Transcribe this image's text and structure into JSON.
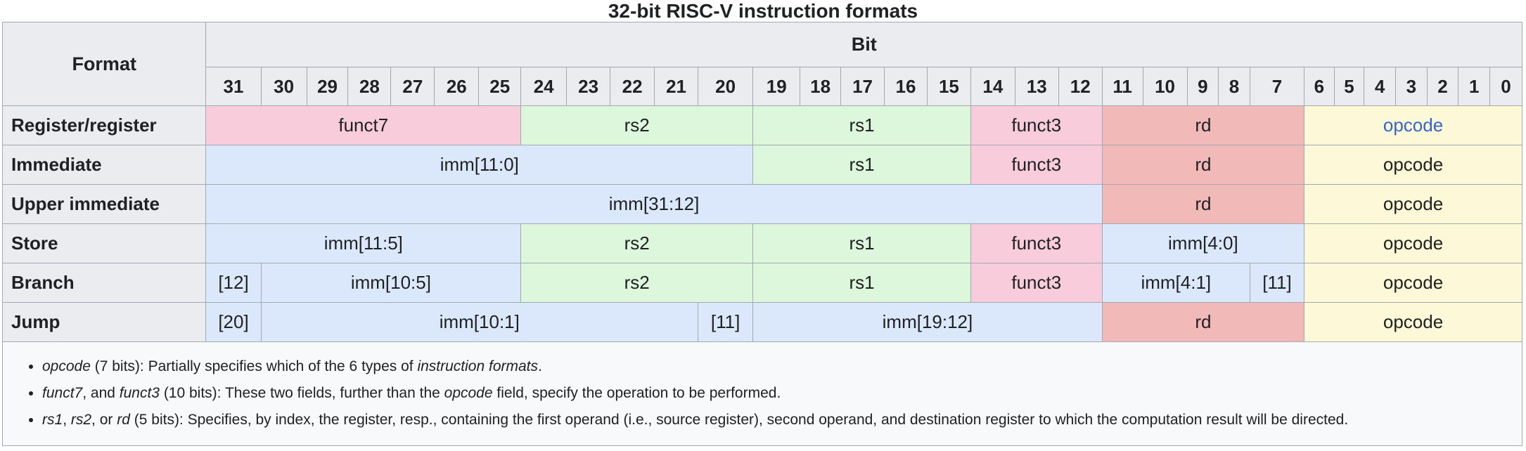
{
  "title": "32-bit RISC-V instruction formats",
  "header": {
    "format_label": "Format",
    "bit_label": "Bit",
    "bit_numbers": [
      "31",
      "30",
      "29",
      "28",
      "27",
      "26",
      "25",
      "24",
      "23",
      "22",
      "21",
      "20",
      "19",
      "18",
      "17",
      "16",
      "15",
      "14",
      "13",
      "12",
      "11",
      "10",
      "9",
      "8",
      "7",
      "6",
      "5",
      "4",
      "3",
      "2",
      "1",
      "0"
    ]
  },
  "layout": {
    "format_col_width": 285,
    "bit_col_widths": [
      77,
      64,
      58,
      60,
      61,
      62,
      59,
      64,
      61,
      62,
      61,
      77,
      66,
      57,
      61,
      60,
      61,
      62,
      61,
      61,
      57,
      62,
      44,
      44,
      76,
      42,
      42,
      44,
      44,
      44,
      44,
      45
    ]
  },
  "colors": {
    "pink": "#F8CCDB",
    "green": "#DDF7DD",
    "blue": "#DBE8FB",
    "salmon": "#F2B9B9",
    "yellow": "#FDF8D7",
    "header_bg": "#EAECF0",
    "border": "#A2A9B1",
    "notes_bg": "#F8F9FA",
    "link": "#3366CC",
    "text": "#202122"
  },
  "rows": [
    {
      "label": "Register/register",
      "fields": [
        {
          "text": "funct7",
          "span": 7,
          "color": "pink"
        },
        {
          "text": "rs2",
          "span": 5,
          "color": "green"
        },
        {
          "text": "rs1",
          "span": 5,
          "color": "green"
        },
        {
          "text": "funct3",
          "span": 3,
          "color": "pink"
        },
        {
          "text": "rd",
          "span": 5,
          "color": "salmon"
        },
        {
          "text": "opcode",
          "span": 7,
          "color": "yellow",
          "link": true
        }
      ]
    },
    {
      "label": "Immediate",
      "fields": [
        {
          "text": "imm[11:0]",
          "span": 12,
          "color": "blue"
        },
        {
          "text": "rs1",
          "span": 5,
          "color": "green"
        },
        {
          "text": "funct3",
          "span": 3,
          "color": "pink"
        },
        {
          "text": "rd",
          "span": 5,
          "color": "salmon"
        },
        {
          "text": "opcode",
          "span": 7,
          "color": "yellow"
        }
      ]
    },
    {
      "label": "Upper immediate",
      "fields": [
        {
          "text": "imm[31:12]",
          "span": 20,
          "color": "blue"
        },
        {
          "text": "rd",
          "span": 5,
          "color": "salmon"
        },
        {
          "text": "opcode",
          "span": 7,
          "color": "yellow"
        }
      ]
    },
    {
      "label": "Store",
      "fields": [
        {
          "text": "imm[11:5]",
          "span": 7,
          "color": "blue"
        },
        {
          "text": "rs2",
          "span": 5,
          "color": "green"
        },
        {
          "text": "rs1",
          "span": 5,
          "color": "green"
        },
        {
          "text": "funct3",
          "span": 3,
          "color": "pink"
        },
        {
          "text": "imm[4:0]",
          "span": 5,
          "color": "blue"
        },
        {
          "text": "opcode",
          "span": 7,
          "color": "yellow"
        }
      ]
    },
    {
      "label": "Branch",
      "fields": [
        {
          "text": "[12]",
          "span": 1,
          "color": "blue"
        },
        {
          "text": "imm[10:5]",
          "span": 6,
          "color": "blue"
        },
        {
          "text": "rs2",
          "span": 5,
          "color": "green"
        },
        {
          "text": "rs1",
          "span": 5,
          "color": "green"
        },
        {
          "text": "funct3",
          "span": 3,
          "color": "pink"
        },
        {
          "text": "imm[4:1]",
          "span": 4,
          "color": "blue"
        },
        {
          "text": "[11]",
          "span": 1,
          "color": "blue"
        },
        {
          "text": "opcode",
          "span": 7,
          "color": "yellow"
        }
      ]
    },
    {
      "label": "Jump",
      "fields": [
        {
          "text": "[20]",
          "span": 1,
          "color": "blue"
        },
        {
          "text": "imm[10:1]",
          "span": 10,
          "color": "blue"
        },
        {
          "text": "[11]",
          "span": 1,
          "color": "blue"
        },
        {
          "text": "imm[19:12]",
          "span": 8,
          "color": "blue"
        },
        {
          "text": "rd",
          "span": 5,
          "color": "salmon"
        },
        {
          "text": "opcode",
          "span": 7,
          "color": "yellow"
        }
      ]
    }
  ],
  "notes": [
    {
      "segments": [
        {
          "t": "opcode",
          "i": true
        },
        {
          "t": " (7 bits): Partially specifies which of the 6 types of ",
          "i": false
        },
        {
          "t": "instruction formats",
          "i": true
        },
        {
          "t": ".",
          "i": false
        }
      ]
    },
    {
      "segments": [
        {
          "t": "funct7",
          "i": true
        },
        {
          "t": ", and ",
          "i": false
        },
        {
          "t": "funct3",
          "i": true
        },
        {
          "t": " (10 bits): These two fields, further than the ",
          "i": false
        },
        {
          "t": "opcode",
          "i": true
        },
        {
          "t": " field, specify the operation to be performed.",
          "i": false
        }
      ]
    },
    {
      "segments": [
        {
          "t": "rs1",
          "i": true
        },
        {
          "t": ", ",
          "i": false
        },
        {
          "t": "rs2",
          "i": true
        },
        {
          "t": ", or ",
          "i": false
        },
        {
          "t": "rd",
          "i": true
        },
        {
          "t": " (5 bits): Specifies, by index, the register, resp., containing the first operand (i.e., source register), second operand, and destination register to which the computation result will be directed.",
          "i": false
        }
      ]
    }
  ]
}
